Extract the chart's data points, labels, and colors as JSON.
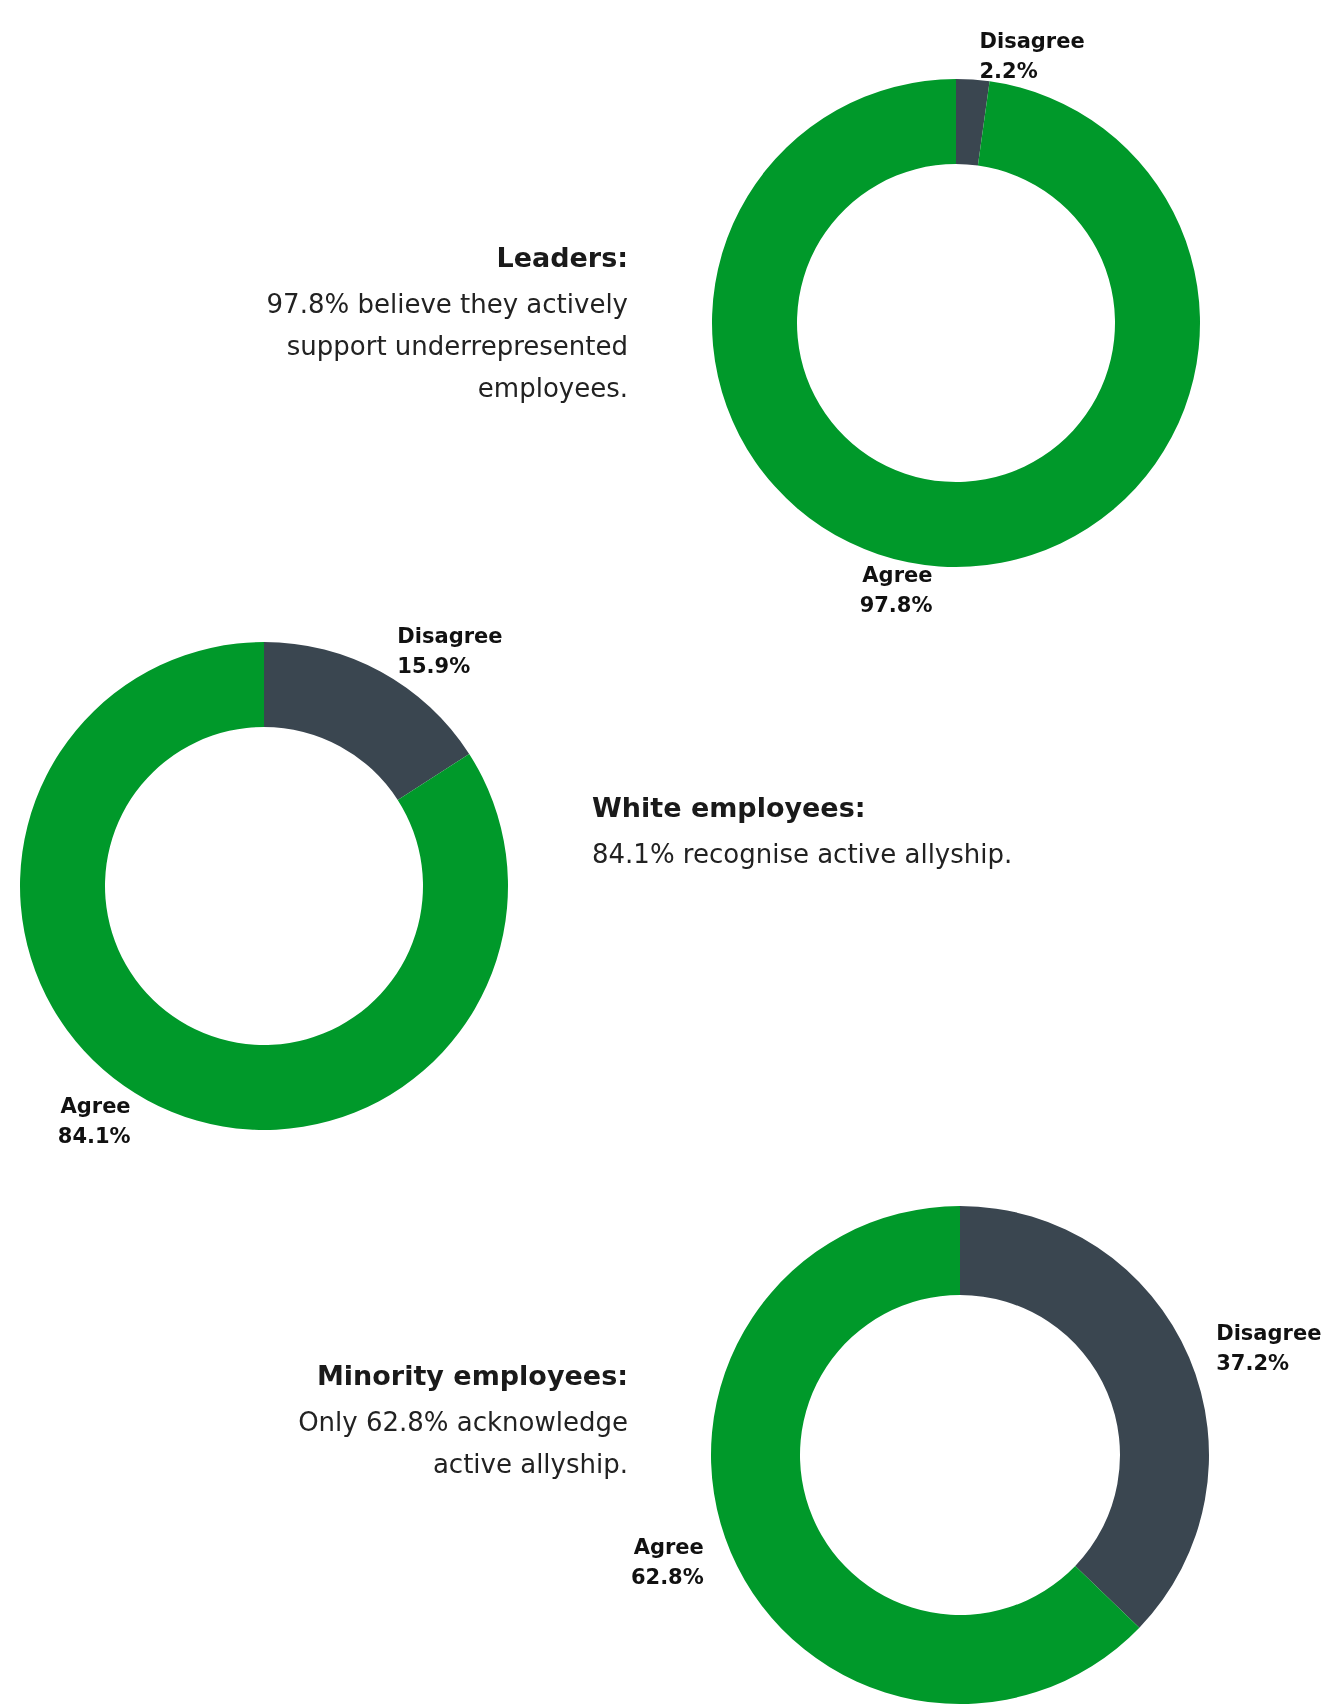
{
  "chart_data": [
    {
      "type": "donut",
      "title": "Leaders:",
      "subtitle": "97.8% believe they actively support underrepresented employees.",
      "categories": [
        "Disagree",
        "Agree"
      ],
      "values": [
        2.2,
        97.8
      ],
      "value_labels": [
        "2.2%",
        "97.8%"
      ],
      "colors": [
        "#3a4650",
        "#00992a"
      ]
    },
    {
      "type": "donut",
      "title": "White employees:",
      "subtitle": "84.1% recognise active allyship.",
      "categories": [
        "Disagree",
        "Agree"
      ],
      "values": [
        15.9,
        84.1
      ],
      "value_labels": [
        "15.9%",
        "84.1%"
      ],
      "colors": [
        "#3a4650",
        "#00992a"
      ]
    },
    {
      "type": "donut",
      "title": "Minority employees:",
      "subtitle": "Only 62.8% acknowledge active allyship.",
      "categories": [
        "Disagree",
        "Agree"
      ],
      "values": [
        37.2,
        62.8
      ],
      "value_labels": [
        "37.2%",
        "62.8%"
      ],
      "colors": [
        "#3a4650",
        "#00992a"
      ]
    }
  ]
}
